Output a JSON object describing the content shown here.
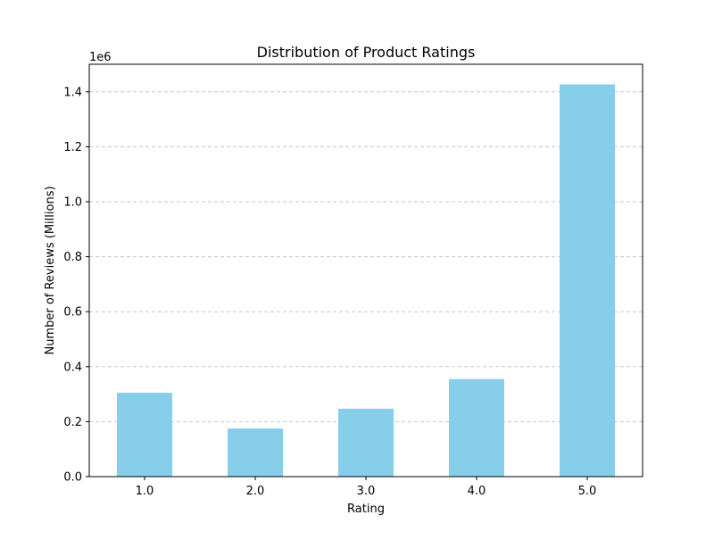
{
  "chart_data": {
    "type": "bar",
    "title": "Distribution of Product Ratings",
    "xlabel": "Rating",
    "ylabel": "Number of Reviews (Millions)",
    "y_offset_label": "1e6",
    "categories": [
      "1.0",
      "2.0",
      "3.0",
      "4.0",
      "5.0"
    ],
    "values": [
      305000,
      175000,
      247000,
      355000,
      1427000
    ],
    "ylim": [
      0,
      1500000
    ],
    "yticks": [
      0,
      200000,
      400000,
      600000,
      800000,
      1000000,
      1200000,
      1400000
    ],
    "ytick_labels": [
      "0.0",
      "0.2",
      "0.4",
      "0.6",
      "0.8",
      "1.0",
      "1.2",
      "1.4"
    ],
    "grid": "y-dashed",
    "bar_color": "#87ceeb",
    "grid_color": "#c8c8c8",
    "axis_color": "#000000"
  }
}
